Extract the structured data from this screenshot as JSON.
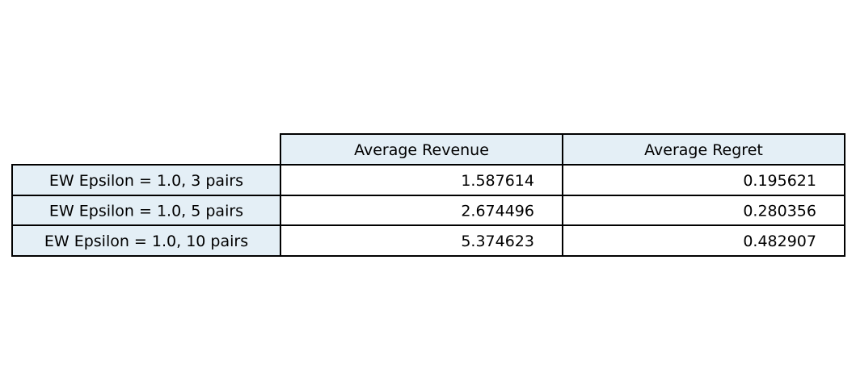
{
  "chart_data": {
    "type": "table",
    "columns": [
      "Average Revenue",
      "Average Regret"
    ],
    "rows": [
      {
        "label": "EW Epsilon = 1.0, 3 pairs",
        "values": [
          "1.587614",
          "0.195621"
        ]
      },
      {
        "label": "EW Epsilon = 1.0, 5 pairs",
        "values": [
          "2.674496",
          "0.280356"
        ]
      },
      {
        "label": "EW Epsilon = 1.0, 10 pairs",
        "values": [
          "5.374623",
          "0.482907"
        ]
      }
    ],
    "header_fill": "#e4eff6",
    "cell_fill": "#ffffff",
    "border_color": "#000000"
  }
}
